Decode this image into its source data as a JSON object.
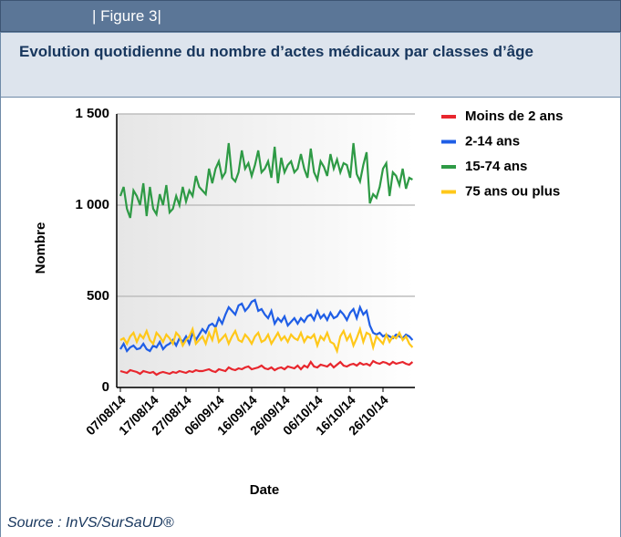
{
  "header": "| Figure 3|",
  "source": "Source : InVS/SurSaUD®",
  "chart_data": {
    "type": "line",
    "title": "Evolution quotidienne du nombre d’actes médicaux par classes d’âge",
    "x_label": "Date",
    "y_label": "Nombre",
    "categories": [
      "07/08/14",
      null,
      null,
      null,
      null,
      null,
      null,
      null,
      null,
      null,
      "17/08/14",
      null,
      null,
      null,
      null,
      null,
      null,
      null,
      null,
      null,
      "27/08/14",
      null,
      null,
      null,
      null,
      null,
      null,
      null,
      null,
      null,
      "06/09/14",
      null,
      null,
      null,
      null,
      null,
      null,
      null,
      null,
      null,
      "16/09/14",
      null,
      null,
      null,
      null,
      null,
      null,
      null,
      null,
      null,
      "26/09/14",
      null,
      null,
      null,
      null,
      null,
      null,
      null,
      null,
      null,
      "06/10/14",
      null,
      null,
      null,
      null,
      null,
      null,
      null,
      null,
      null,
      "16/10/14",
      null,
      null,
      null,
      null,
      null,
      null,
      null,
      null,
      null,
      "26/10/14",
      null,
      null,
      null,
      null,
      null,
      null,
      null,
      null,
      null
    ],
    "ylim": [
      0,
      1500
    ],
    "yticks": [
      0,
      500,
      {
        "value": 1000,
        "label": "1 000"
      },
      {
        "value": 1500,
        "label": "1 500"
      }
    ],
    "grid": true,
    "legend": "right",
    "series": [
      {
        "name": "Moins de 2 ans",
        "color": "#e8262d",
        "values": [
          90,
          85,
          80,
          95,
          90,
          85,
          75,
          90,
          85,
          80,
          85,
          70,
          80,
          85,
          80,
          75,
          85,
          80,
          90,
          85,
          80,
          90,
          85,
          95,
          90,
          90,
          95,
          100,
          90,
          85,
          100,
          95,
          90,
          110,
          100,
          95,
          105,
          100,
          110,
          115,
          100,
          105,
          110,
          120,
          105,
          100,
          110,
          95,
          105,
          110,
          100,
          115,
          110,
          105,
          120,
          100,
          120,
          110,
          140,
          115,
          110,
          125,
          120,
          115,
          130,
          110,
          125,
          140,
          120,
          115,
          125,
          130,
          120,
          135,
          125,
          130,
          120,
          145,
          135,
          130,
          140,
          135,
          125,
          140,
          130,
          135,
          140,
          130,
          125,
          140
        ]
      },
      {
        "name": "2-14 ans",
        "color": "#1f5ee6",
        "values": [
          210,
          240,
          200,
          220,
          230,
          210,
          215,
          240,
          210,
          200,
          230,
          220,
          250,
          210,
          230,
          240,
          260,
          230,
          270,
          250,
          280,
          240,
          300,
          260,
          290,
          320,
          300,
          340,
          350,
          330,
          380,
          350,
          400,
          440,
          420,
          400,
          450,
          460,
          420,
          440,
          470,
          480,
          420,
          430,
          400,
          380,
          420,
          350,
          380,
          360,
          390,
          340,
          360,
          380,
          350,
          380,
          360,
          390,
          400,
          370,
          420,
          380,
          400,
          370,
          410,
          380,
          390,
          420,
          400,
          370,
          410,
          430,
          380,
          440,
          400,
          420,
          340,
          300,
          290,
          300,
          280,
          290,
          280,
          270,
          290,
          280,
          270,
          290,
          280,
          260
        ]
      },
      {
        "name": "15-74 ans",
        "color": "#2e9a45",
        "values": [
          1050,
          1100,
          980,
          930,
          1080,
          1050,
          1000,
          1120,
          940,
          1100,
          980,
          950,
          1060,
          1000,
          1110,
          960,
          980,
          1050,
          1000,
          1100,
          1020,
          1080,
          1050,
          1160,
          1100,
          1080,
          1060,
          1200,
          1120,
          1200,
          1240,
          1150,
          1180,
          1340,
          1150,
          1130,
          1180,
          1300,
          1200,
          1230,
          1160,
          1220,
          1300,
          1180,
          1200,
          1240,
          1150,
          1320,
          1120,
          1260,
          1180,
          1220,
          1240,
          1180,
          1200,
          1280,
          1200,
          1150,
          1310,
          1180,
          1140,
          1240,
          1210,
          1160,
          1280,
          1200,
          1250,
          1180,
          1230,
          1220,
          1150,
          1340,
          1170,
          1130,
          1220,
          1290,
          1010,
          1060,
          1040,
          1100,
          1200,
          1230,
          1050,
          1180,
          1160,
          1110,
          1200,
          1090,
          1150,
          1140
        ]
      },
      {
        "name": "75 ans ou plus",
        "color": "#ffc81a",
        "values": [
          260,
          270,
          240,
          280,
          300,
          250,
          290,
          270,
          310,
          260,
          240,
          300,
          280,
          250,
          290,
          270,
          240,
          300,
          280,
          230,
          260,
          280,
          320,
          240,
          260,
          280,
          240,
          300,
          260,
          330,
          250,
          270,
          290,
          240,
          280,
          310,
          260,
          250,
          290,
          270,
          240,
          280,
          300,
          250,
          260,
          290,
          240,
          270,
          300,
          260,
          280,
          250,
          290,
          270,
          260,
          300,
          250,
          280,
          270,
          290,
          230,
          280,
          260,
          300,
          250,
          240,
          200,
          280,
          310,
          260,
          290,
          230,
          270,
          320,
          250,
          300,
          290,
          220,
          280,
          260,
          240,
          290,
          250,
          280,
          270,
          300,
          260,
          280,
          240,
          220
        ]
      }
    ]
  }
}
